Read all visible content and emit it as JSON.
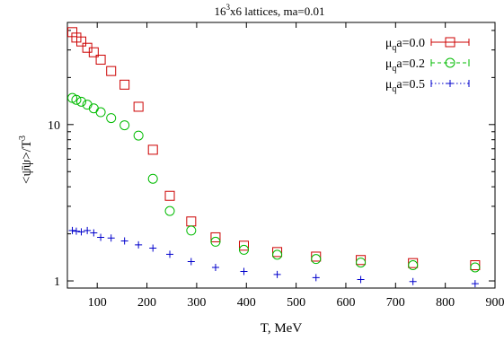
{
  "chart_data": {
    "type": "scatter",
    "title": "16³x6 lattices, ma=0.01",
    "title_parts": {
      "base": "16",
      "sup": "3",
      "rest": "x6 lattices, ma=0.01"
    },
    "xlabel": "T, MeV",
    "ylabel": "<ψ̄ψ>/T³",
    "ylabel_parts": {
      "main": "<ψ̄ψ>/T",
      "sup": "3"
    },
    "xlim": [
      40,
      900
    ],
    "ylim": [
      0.9,
      45
    ],
    "yscale": "log",
    "x_ticks": [
      100,
      200,
      300,
      400,
      500,
      600,
      700,
      800,
      900
    ],
    "y_ticks": [
      1,
      10
    ],
    "legend_position": "top-right",
    "series": [
      {
        "name": "μqa=0.0",
        "label_parts": {
          "base": "μ",
          "sub": "q",
          "rest": "a=0.0"
        },
        "color": "#cc0000",
        "marker": "square",
        "line_style": "solid",
        "x": [
          50,
          58,
          68,
          80,
          93,
          107,
          128,
          155,
          183,
          212,
          246,
          289,
          338,
          395,
          462,
          540,
          630,
          735,
          860
        ],
        "y": [
          39,
          36,
          34,
          31,
          29,
          26,
          22,
          18,
          13,
          6.9,
          3.5,
          2.4,
          1.9,
          1.68,
          1.53,
          1.43,
          1.36,
          1.3,
          1.26
        ]
      },
      {
        "name": "μqa=0.2",
        "label_parts": {
          "base": "μ",
          "sub": "q",
          "rest": "a=0.2"
        },
        "color": "#00bb00",
        "marker": "circle",
        "line_style": "dashed",
        "x": [
          50,
          58,
          68,
          80,
          93,
          107,
          128,
          155,
          183,
          212,
          246,
          289,
          338,
          395,
          462,
          540,
          630,
          735,
          860
        ],
        "y": [
          14.8,
          14.4,
          14,
          13.4,
          12.7,
          12,
          11,
          9.9,
          8.5,
          4.5,
          2.8,
          2.1,
          1.78,
          1.58,
          1.47,
          1.38,
          1.31,
          1.26,
          1.22
        ]
      },
      {
        "name": "μqa=0.5",
        "label_parts": {
          "base": "μ",
          "sub": "q",
          "rest": "a=0.5"
        },
        "color": "#0000cc",
        "marker": "plus",
        "line_style": "dotted",
        "x": [
          50,
          58,
          68,
          80,
          93,
          107,
          128,
          155,
          183,
          212,
          246,
          289,
          338,
          395,
          462,
          540,
          630,
          735,
          860
        ],
        "y": [
          2.1,
          2.08,
          2.06,
          2.1,
          2.03,
          1.9,
          1.88,
          1.8,
          1.7,
          1.62,
          1.48,
          1.33,
          1.22,
          1.15,
          1.1,
          1.05,
          1.02,
          0.99,
          0.96
        ]
      }
    ]
  }
}
